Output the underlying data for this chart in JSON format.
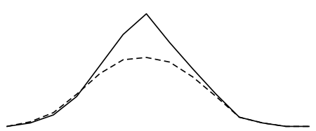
{
  "solid_x": [
    0,
    1,
    2,
    3,
    4,
    5,
    6,
    7,
    8,
    9,
    10,
    11,
    12,
    13
  ],
  "solid_y": [
    0.02,
    0.05,
    0.12,
    0.28,
    0.55,
    0.82,
    1.0,
    0.75,
    0.52,
    0.3,
    0.1,
    0.05,
    0.02,
    0.02
  ],
  "dashed_x": [
    0,
    1,
    2,
    3,
    4,
    5,
    6,
    7,
    8,
    9,
    10,
    11,
    12,
    13
  ],
  "dashed_y": [
    0.02,
    0.06,
    0.14,
    0.3,
    0.48,
    0.6,
    0.62,
    0.58,
    0.45,
    0.28,
    0.1,
    0.05,
    0.02,
    0.02
  ],
  "solid_color": "#000000",
  "dashed_color": "#000000",
  "bg_color": "#ffffff",
  "linewidth_solid": 1.2,
  "linewidth_dashed": 1.2,
  "dash_style": [
    5,
    3
  ],
  "xlim": [
    -0.3,
    13.3
  ],
  "ylim": [
    -0.02,
    1.12
  ]
}
